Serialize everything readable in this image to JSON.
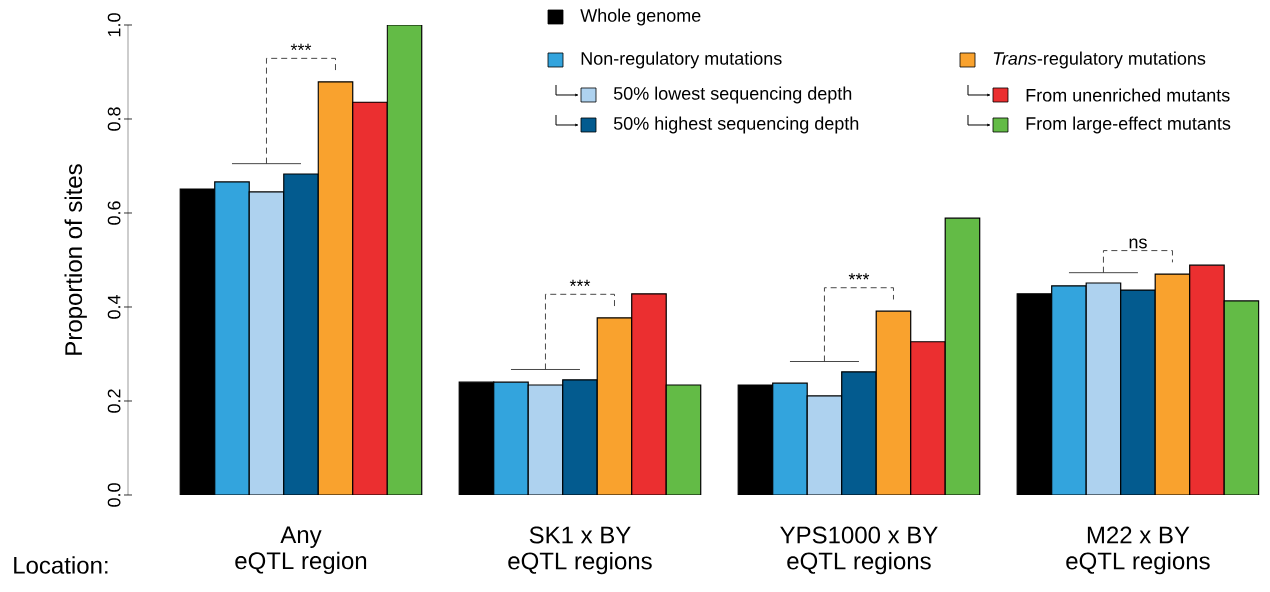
{
  "chart_data": {
    "type": "bar",
    "ylabel": "Proportion of sites",
    "categories": [
      "Any\neQTL region",
      "SK1 x BY\neQTL regions",
      "YPS1000 x BY\neQTL regions",
      "M22 x BY\neQTL regions"
    ],
    "series": [
      {
        "name": "Whole genome",
        "color": "#000000",
        "values": [
          0.651,
          0.24,
          0.234,
          0.428
        ]
      },
      {
        "name": "Non-regulatory mutations",
        "color": "#33a4dd",
        "values": [
          0.666,
          0.24,
          0.238,
          0.445
        ]
      },
      {
        "name": "50% lowest sequencing depth",
        "color": "#aed2ef",
        "values": [
          0.645,
          0.234,
          0.211,
          0.451
        ]
      },
      {
        "name": "50% highest sequencing depth",
        "color": "#035b8f",
        "values": [
          0.683,
          0.245,
          0.262,
          0.436
        ]
      },
      {
        "name": "*Trans*-regulatory mutations",
        "color": "#f9a22e",
        "values": [
          0.879,
          0.377,
          0.391,
          0.47
        ]
      },
      {
        "name": "From unenriched mutants",
        "color": "#eb2f30",
        "values": [
          0.836,
          0.428,
          0.326,
          0.489
        ]
      },
      {
        "name": "From large-effect mutants",
        "color": "#63bb46",
        "values": [
          1.0,
          0.234,
          0.589,
          0.413
        ]
      }
    ],
    "ylim": [
      0,
      1
    ],
    "yticks": [
      {
        "value": 0,
        "label": "0.0"
      },
      0.2,
      0.4,
      0.6,
      0.8,
      {
        "value": 1,
        "label": "1.0"
      }
    ],
    "legend": "top right",
    "annotations": [
      "***",
      "***",
      "***",
      "ns",
      "Location:"
    ]
  }
}
